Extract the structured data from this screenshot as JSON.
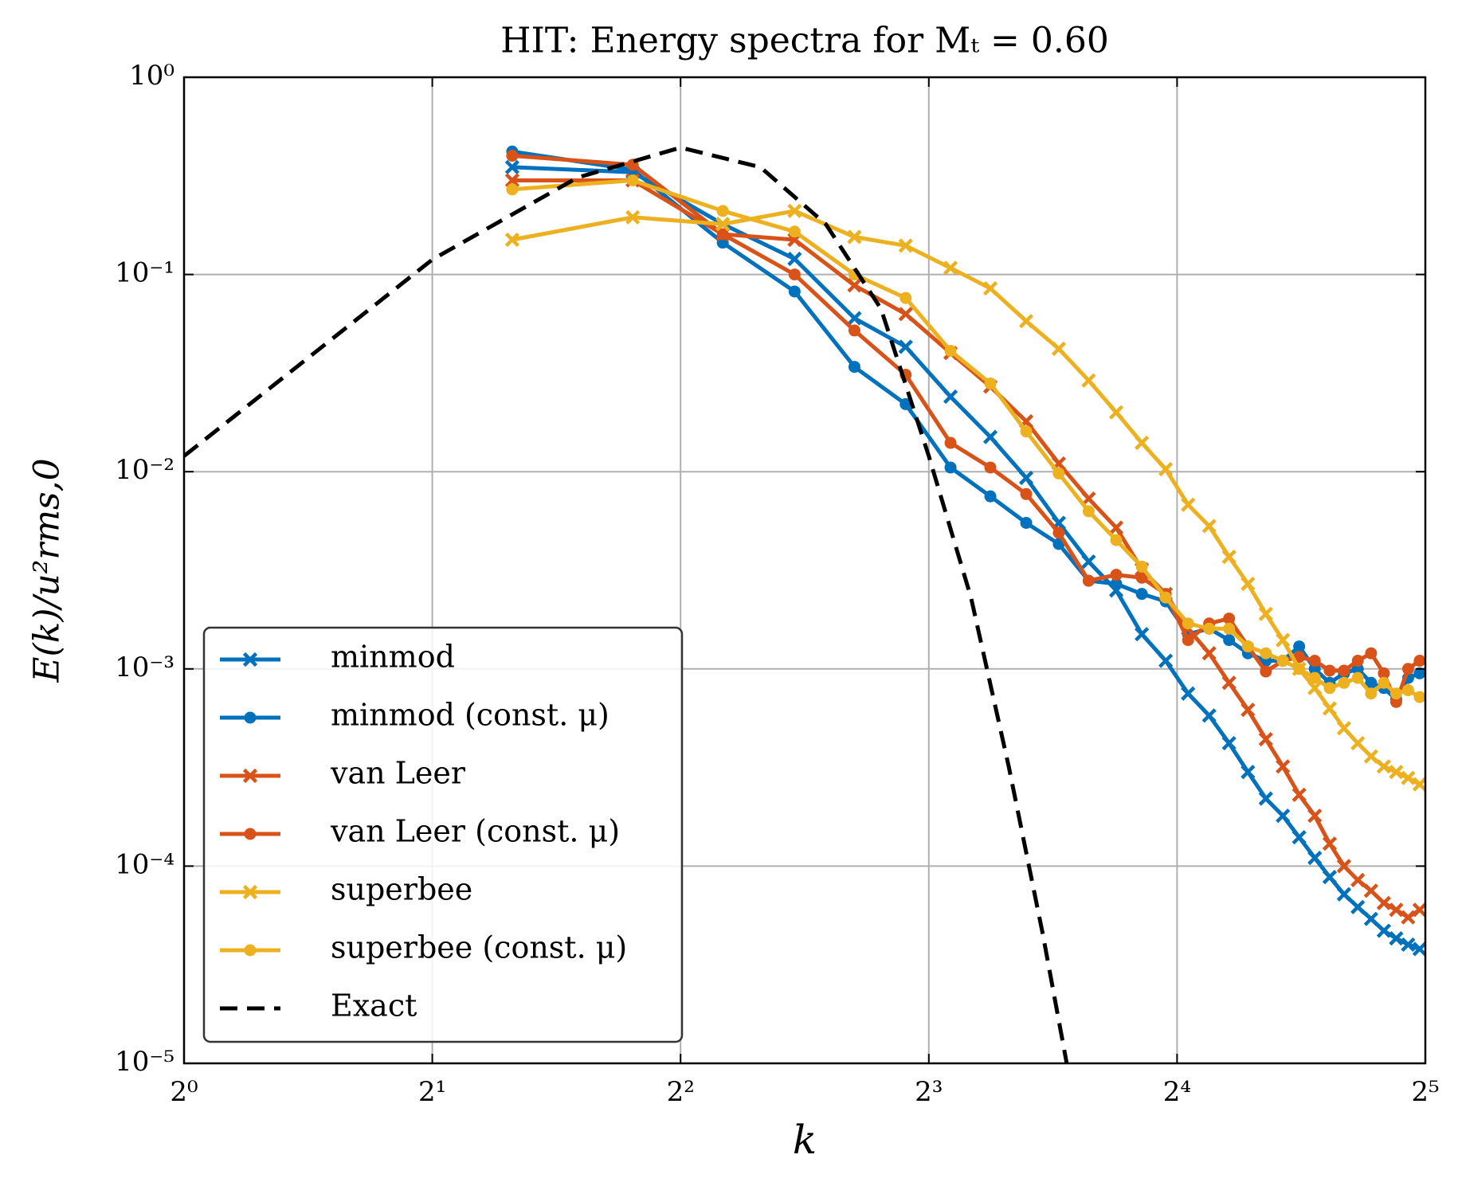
{
  "chart_data": {
    "type": "line",
    "title": "HIT: Energy spectra for Mₜ = 0.60",
    "xlabel": "k",
    "ylabel": "E(k)/u²rms,0",
    "xscale": "log2",
    "yscale": "log10",
    "grid": true,
    "legend": "lower left",
    "xlim": [
      1,
      32
    ],
    "ylim": [
      1e-05,
      1
    ],
    "xticks": [
      {
        "value": 1,
        "label": "2⁰"
      },
      {
        "value": 2,
        "label": "2¹"
      },
      {
        "value": 4,
        "label": "2²"
      },
      {
        "value": 8,
        "label": "2³"
      },
      {
        "value": 16,
        "label": "2⁴"
      },
      {
        "value": 32,
        "label": "2⁵"
      }
    ],
    "yticks": [
      {
        "value": 1e-05,
        "label": "10⁻⁵"
      },
      {
        "value": 0.0001,
        "label": "10⁻⁴"
      },
      {
        "value": 0.001,
        "label": "10⁻³"
      },
      {
        "value": 0.01,
        "label": "10⁻²"
      },
      {
        "value": 0.1,
        "label": "10⁻¹"
      },
      {
        "value": 1,
        "label": "10⁰"
      }
    ],
    "x": [
      2.5,
      3.5,
      4.5,
      5.5,
      6.5,
      7.5,
      8.5,
      9.5,
      10.5,
      11.5,
      12.5,
      13.5,
      14.5,
      15.5,
      16.5,
      17.5,
      18.5,
      19.5,
      20.5,
      21.5,
      22.5,
      23.5,
      24.5,
      25.5,
      26.5,
      27.5,
      28.5,
      29.5,
      30.5,
      31.5
    ],
    "series": [
      {
        "name": "minmod",
        "color": "#0072bd",
        "marker": "x",
        "values": [
          0.35,
          0.33,
          0.18,
          0.12,
          0.06,
          0.043,
          0.024,
          0.015,
          0.0093,
          0.0055,
          0.0035,
          0.0025,
          0.0015,
          0.0011,
          0.00075,
          0.00058,
          0.00042,
          0.0003,
          0.00022,
          0.00018,
          0.00014,
          0.00011,
          8.8e-05,
          7.2e-05,
          6.2e-05,
          5.4e-05,
          4.7e-05,
          4.3e-05,
          4e-05,
          3.8e-05
        ]
      },
      {
        "name": "minmod (const. μ)",
        "color": "#0072bd",
        "marker": "o",
        "values": [
          0.42,
          0.34,
          0.145,
          0.082,
          0.034,
          0.022,
          0.0105,
          0.0075,
          0.0055,
          0.0043,
          0.0028,
          0.0027,
          0.0024,
          0.0022,
          0.0015,
          0.0016,
          0.0014,
          0.0012,
          0.0011,
          0.0011,
          0.0013,
          0.001,
          0.00085,
          0.00095,
          0.001,
          0.00085,
          0.0008,
          0.0007,
          0.0009,
          0.00095
        ]
      },
      {
        "name": "van Leer",
        "color": "#d95319",
        "marker": "x",
        "values": [
          0.3,
          0.3,
          0.16,
          0.15,
          0.088,
          0.063,
          0.04,
          0.027,
          0.018,
          0.011,
          0.0073,
          0.0052,
          0.0032,
          0.0024,
          0.0016,
          0.0012,
          0.00085,
          0.00062,
          0.00044,
          0.00032,
          0.00023,
          0.00018,
          0.00013,
          0.0001,
          8.5e-05,
          7.5e-05,
          6.5e-05,
          6e-05,
          5.5e-05,
          6e-05
        ]
      },
      {
        "name": "van Leer (const. μ)",
        "color": "#d95319",
        "marker": "o",
        "values": [
          0.4,
          0.36,
          0.16,
          0.1,
          0.052,
          0.031,
          0.014,
          0.0105,
          0.0077,
          0.0049,
          0.0028,
          0.003,
          0.0029,
          0.0024,
          0.0014,
          0.0017,
          0.0018,
          0.0013,
          0.00097,
          0.0011,
          0.00115,
          0.0011,
          0.00098,
          0.00098,
          0.0011,
          0.0012,
          0.00095,
          0.00068,
          0.001,
          0.0011
        ]
      },
      {
        "name": "superbee",
        "color": "#edb120",
        "marker": "x",
        "values": [
          0.15,
          0.195,
          0.18,
          0.21,
          0.155,
          0.14,
          0.108,
          0.085,
          0.058,
          0.042,
          0.029,
          0.02,
          0.014,
          0.0103,
          0.0068,
          0.0053,
          0.0037,
          0.0027,
          0.0019,
          0.0014,
          0.001,
          0.0008,
          0.00063,
          0.0005,
          0.00042,
          0.00036,
          0.00032,
          0.0003,
          0.00028,
          0.00026
        ]
      },
      {
        "name": "superbee (const. μ)",
        "color": "#edb120",
        "marker": "o",
        "values": [
          0.27,
          0.3,
          0.21,
          0.165,
          0.1,
          0.076,
          0.041,
          0.028,
          0.016,
          0.0098,
          0.0063,
          0.0045,
          0.0033,
          0.0023,
          0.0017,
          0.0016,
          0.0016,
          0.0013,
          0.0012,
          0.0011,
          0.001,
          0.0009,
          0.0008,
          0.00085,
          0.0009,
          0.00075,
          0.00085,
          0.00075,
          0.00078,
          0.00072
        ]
      },
      {
        "name": "Exact",
        "color": "#000000",
        "dash": true,
        "x": [
          1,
          2,
          3,
          4,
          5,
          6,
          7,
          8,
          9,
          10,
          11,
          12
        ],
        "values": [
          0.012,
          0.119,
          0.31,
          0.44,
          0.35,
          0.18,
          0.067,
          0.012,
          0.0023,
          0.00032,
          4.5e-05,
          6.3e-06
        ]
      }
    ]
  }
}
